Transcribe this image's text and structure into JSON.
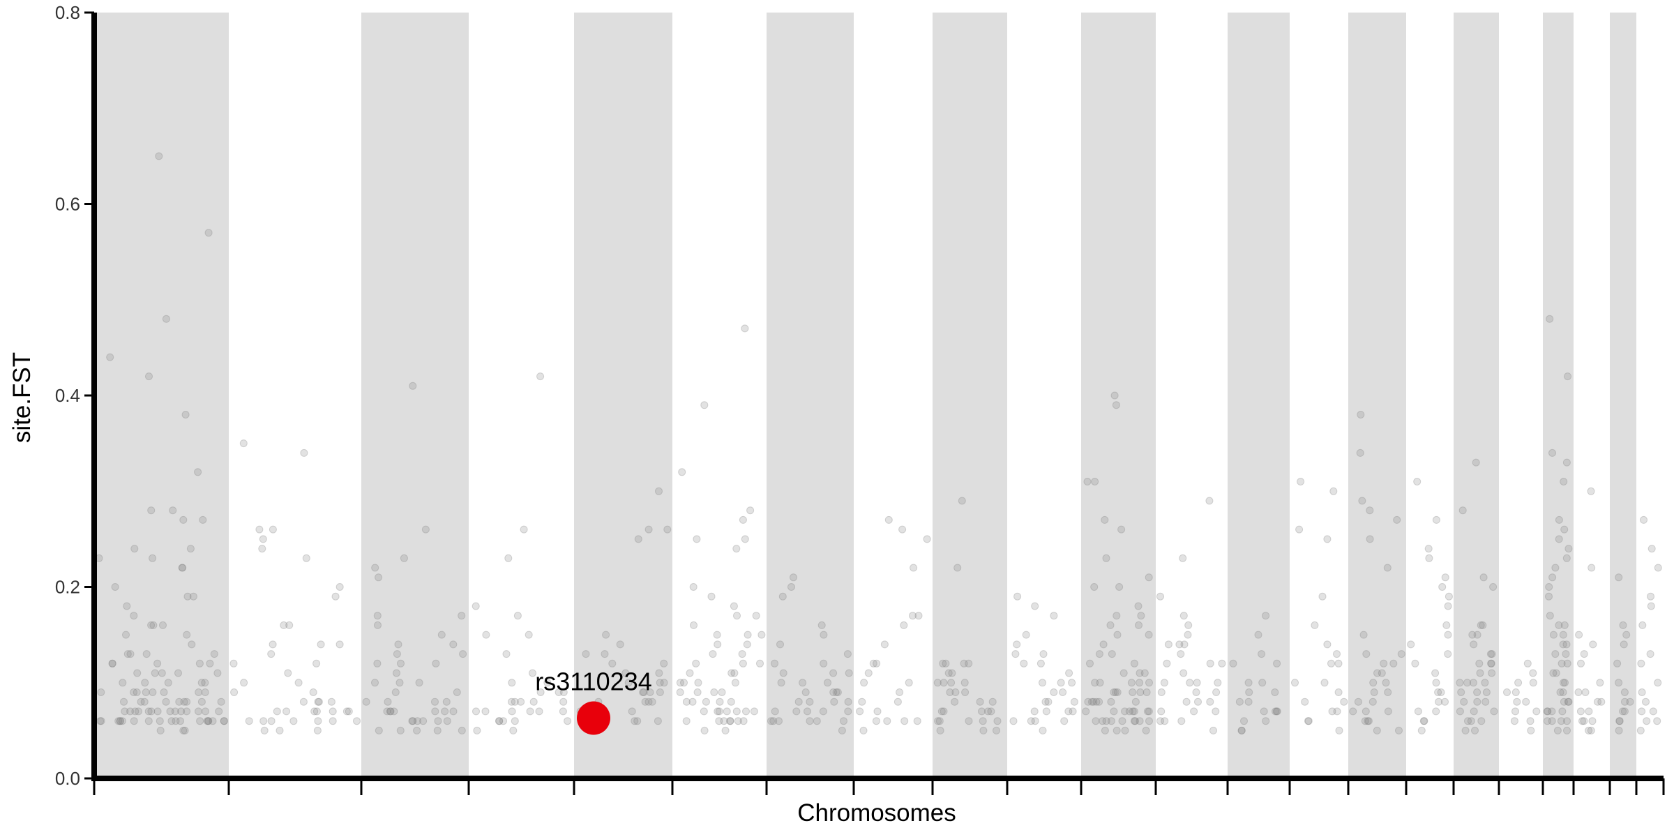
{
  "chart_data": {
    "type": "scatter",
    "title": "",
    "xlabel": "Chromosomes",
    "ylabel": "site.FST",
    "ylim": [
      0,
      0.8
    ],
    "y_ticks": [
      "0.0",
      "0.2",
      "0.4",
      "0.6",
      "0.8"
    ],
    "y_tick_values": [
      0,
      0.2,
      0.4,
      0.6,
      0.8
    ],
    "x_tick_labels": [],
    "grid": false,
    "legend": "none",
    "colors": {
      "points": "#7a7a7a",
      "band": "#dedede",
      "highlight": "#e8000b",
      "axis": "#000000"
    },
    "chromosome_bands": "alternating gray/white",
    "chromosome_count": 22,
    "highlight": {
      "label": "rs3110234",
      "chromosome": 4,
      "site_fst": 0.063
    },
    "chromosomes": [
      {
        "chr": 1,
        "shaded": true,
        "fst": [
          0.07,
          0.09,
          0.11,
          0.06,
          0.08,
          0.27,
          0.06,
          0.12,
          0.19,
          0.27,
          0.14,
          0.08,
          0.09,
          0.1,
          0.06,
          0.13,
          0.07,
          0.32,
          0.06,
          0.1,
          0.12,
          0.07,
          0.24,
          0.08,
          0.09,
          0.1,
          0.13,
          0.06,
          0.07,
          0.23,
          0.08,
          0.06,
          0.06,
          0.07,
          0.09,
          0.11,
          0.08,
          0.12,
          0.19,
          0.18,
          0.16,
          0.57,
          0.1,
          0.11,
          0.08,
          0.09,
          0.15,
          0.12,
          0.28,
          0.44,
          0.38,
          0.06,
          0.07,
          0.13,
          0.13,
          0.42,
          0.28,
          0.11,
          0.09,
          0.06,
          0.07,
          0.2,
          0.22,
          0.23,
          0.24,
          0.17,
          0.16,
          0.15,
          0.12,
          0.65,
          0.48,
          0.07,
          0.06,
          0.08,
          0.09,
          0.1,
          0.11,
          0.16,
          0.22,
          0.07,
          0.06,
          0.07,
          0.08,
          0.09,
          0.06,
          0.07,
          0.06,
          0.08,
          0.06,
          0.07,
          0.06,
          0.05,
          0.06,
          0.07,
          0.06,
          0.05,
          0.06,
          0.07,
          0.05,
          0.06
        ]
      },
      {
        "chr": 2,
        "shaded": false,
        "fst": [
          0.34,
          0.08,
          0.35,
          0.07,
          0.1,
          0.25,
          0.16,
          0.07,
          0.06,
          0.2,
          0.24,
          0.06,
          0.16,
          0.07,
          0.09,
          0.26,
          0.14,
          0.19,
          0.08,
          0.06,
          0.23,
          0.14,
          0.13,
          0.12,
          0.05,
          0.1,
          0.09,
          0.08,
          0.12,
          0.06,
          0.07,
          0.07,
          0.05,
          0.06,
          0.08,
          0.26,
          0.07,
          0.11,
          0.14,
          0.06,
          0.07,
          0.05,
          0.06
        ]
      },
      {
        "chr": 3,
        "shaded": true,
        "fst": [
          0.14,
          0.12,
          0.1,
          0.17,
          0.08,
          0.05,
          0.06,
          0.07,
          0.13,
          0.41,
          0.06,
          0.05,
          0.07,
          0.1,
          0.08,
          0.26,
          0.23,
          0.22,
          0.21,
          0.17,
          0.16,
          0.15,
          0.12,
          0.07,
          0.05,
          0.07,
          0.06,
          0.09,
          0.11,
          0.1,
          0.14,
          0.12,
          0.13,
          0.08,
          0.07,
          0.06,
          0.05,
          0.07,
          0.06,
          0.09,
          0.08,
          0.07,
          0.06,
          0.05
        ]
      },
      {
        "chr": 4,
        "shaded": false,
        "fst": [
          0.26,
          0.42,
          0.07,
          0.06,
          0.15,
          0.1,
          0.18,
          0.07,
          0.08,
          0.17,
          0.23,
          0.09,
          0.08,
          0.15,
          0.13,
          0.08,
          0.06,
          0.07,
          0.06,
          0.08,
          0.07,
          0.11,
          0.1,
          0.09,
          0.06,
          0.05,
          0.07,
          0.08,
          0.09,
          0.06,
          0.07,
          0.05
        ]
      },
      {
        "chr": 5,
        "shaded": true,
        "fst": [
          0.12,
          0.07,
          0.11,
          0.13,
          0.1,
          0.09,
          0.26,
          0.26,
          0.14,
          0.25,
          0.3,
          0.15,
          0.08,
          0.07,
          0.06,
          0.1,
          0.13,
          0.09,
          0.08,
          0.07,
          0.06,
          0.07,
          0.08,
          0.09,
          0.12,
          0.11,
          0.06,
          0.07,
          0.06,
          0.08,
          0.1,
          0.09,
          0.07
        ]
      },
      {
        "chr": 6,
        "shaded": false,
        "fst": [
          0.39,
          0.28,
          0.27,
          0.24,
          0.17,
          0.16,
          0.15,
          0.14,
          0.13,
          0.12,
          0.11,
          0.1,
          0.09,
          0.08,
          0.07,
          0.06,
          0.32,
          0.05,
          0.06,
          0.07,
          0.08,
          0.09,
          0.1,
          0.06,
          0.07,
          0.08,
          0.05,
          0.06,
          0.07,
          0.09,
          0.11,
          0.06,
          0.07,
          0.08,
          0.07,
          0.06,
          0.12,
          0.13,
          0.1,
          0.15,
          0.47,
          0.25,
          0.25,
          0.2,
          0.18,
          0.17,
          0.19,
          0.15,
          0.12,
          0.11,
          0.14,
          0.1,
          0.09,
          0.08,
          0.07,
          0.06
        ]
      },
      {
        "chr": 7,
        "shaded": true,
        "fst": [
          0.21,
          0.2,
          0.12,
          0.11,
          0.09,
          0.08,
          0.07,
          0.06,
          0.06,
          0.07,
          0.08,
          0.06,
          0.13,
          0.11,
          0.1,
          0.09,
          0.08,
          0.16,
          0.12,
          0.1,
          0.09,
          0.08,
          0.07,
          0.06,
          0.05,
          0.07,
          0.06,
          0.15,
          0.14,
          0.19,
          0.11,
          0.1,
          0.09,
          0.07,
          0.06
        ]
      },
      {
        "chr": 8,
        "shaded": false,
        "fst": [
          0.27,
          0.26,
          0.25,
          0.22,
          0.17,
          0.14,
          0.12,
          0.1,
          0.08,
          0.07,
          0.06,
          0.06,
          0.17,
          0.16,
          0.12,
          0.11,
          0.1,
          0.09,
          0.08,
          0.06,
          0.05,
          0.07,
          0.06
        ]
      },
      {
        "chr": 9,
        "shaded": true,
        "fst": [
          0.12,
          0.11,
          0.1,
          0.09,
          0.08,
          0.07,
          0.06,
          0.06,
          0.05,
          0.05,
          0.07,
          0.12,
          0.1,
          0.12,
          0.09,
          0.06,
          0.07,
          0.08,
          0.1,
          0.12,
          0.11,
          0.07,
          0.06,
          0.08,
          0.22,
          0.29,
          0.1,
          0.09,
          0.07,
          0.06,
          0.05
        ]
      },
      {
        "chr": 10,
        "shaded": false,
        "fst": [
          0.14,
          0.08,
          0.07,
          0.06,
          0.12,
          0.13,
          0.15,
          0.1,
          0.09,
          0.07,
          0.08,
          0.06,
          0.19,
          0.18,
          0.17,
          0.13,
          0.12,
          0.1,
          0.09,
          0.07,
          0.06,
          0.08,
          0.11,
          0.1,
          0.07,
          0.06,
          0.05
        ]
      },
      {
        "chr": 11,
        "shaded": true,
        "fst": [
          0.31,
          0.26,
          0.23,
          0.17,
          0.16,
          0.15,
          0.13,
          0.11,
          0.1,
          0.09,
          0.08,
          0.07,
          0.06,
          0.06,
          0.05,
          0.06,
          0.07,
          0.08,
          0.07,
          0.09,
          0.27,
          0.39,
          0.2,
          0.17,
          0.14,
          0.12,
          0.1,
          0.09,
          0.08,
          0.07,
          0.06,
          0.05,
          0.11,
          0.13,
          0.15,
          0.16,
          0.1,
          0.09,
          0.08,
          0.06,
          0.07,
          0.05,
          0.06,
          0.07,
          0.1,
          0.09,
          0.08,
          0.06,
          0.07,
          0.08,
          0.05,
          0.06,
          0.4,
          0.31,
          0.21,
          0.2,
          0.18,
          0.1,
          0.09,
          0.12,
          0.11,
          0.08,
          0.07,
          0.06
        ]
      },
      {
        "chr": 12,
        "shaded": false,
        "fst": [
          0.19,
          0.17,
          0.14,
          0.12,
          0.11,
          0.1,
          0.09,
          0.08,
          0.07,
          0.06,
          0.05,
          0.07,
          0.08,
          0.09,
          0.23,
          0.06,
          0.1,
          0.14,
          0.13,
          0.12,
          0.1,
          0.09,
          0.08,
          0.07,
          0.06,
          0.29,
          0.16,
          0.15,
          0.14,
          0.12,
          0.1
        ]
      },
      {
        "chr": 13,
        "shaded": true,
        "fst": [
          0.1,
          0.07,
          0.05,
          0.17,
          0.15,
          0.13,
          0.12,
          0.09,
          0.08,
          0.07,
          0.06,
          0.05,
          0.1,
          0.09,
          0.07,
          0.06,
          0.12,
          0.08,
          0.07
        ]
      },
      {
        "chr": 14,
        "shaded": false,
        "fst": [
          0.26,
          0.25,
          0.3,
          0.31,
          0.19,
          0.16,
          0.12,
          0.1,
          0.08,
          0.07,
          0.06,
          0.05,
          0.14,
          0.13,
          0.12,
          0.1,
          0.09,
          0.08,
          0.07,
          0.06
        ]
      },
      {
        "chr": 15,
        "shaded": true,
        "fst": [
          0.38,
          0.34,
          0.29,
          0.28,
          0.27,
          0.25,
          0.22,
          0.15,
          0.13,
          0.12,
          0.11,
          0.1,
          0.09,
          0.08,
          0.07,
          0.06,
          0.05,
          0.07,
          0.06,
          0.08,
          0.1,
          0.12,
          0.11,
          0.09,
          0.07,
          0.06,
          0.05,
          0.13
        ]
      },
      {
        "chr": 16,
        "shaded": false,
        "fst": [
          0.21,
          0.2,
          0.31,
          0.27,
          0.24,
          0.23,
          0.19,
          0.18,
          0.16,
          0.14,
          0.13,
          0.12,
          0.1,
          0.09,
          0.08,
          0.07,
          0.06,
          0.05,
          0.15,
          0.11,
          0.09,
          0.08,
          0.07,
          0.06
        ]
      },
      {
        "chr": 17,
        "shaded": true,
        "fst": [
          0.21,
          0.2,
          0.16,
          0.15,
          0.14,
          0.13,
          0.12,
          0.1,
          0.09,
          0.08,
          0.07,
          0.06,
          0.05,
          0.33,
          0.28,
          0.16,
          0.12,
          0.11,
          0.1,
          0.09,
          0.08,
          0.07,
          0.06,
          0.12,
          0.11,
          0.1,
          0.09,
          0.08,
          0.07,
          0.06,
          0.05,
          0.15,
          0.13,
          0.1
        ]
      },
      {
        "chr": 18,
        "shaded": false,
        "fst": [
          0.12,
          0.1,
          0.09,
          0.08,
          0.07,
          0.06,
          0.05,
          0.06,
          0.07,
          0.08,
          0.09,
          0.1,
          0.11
        ]
      },
      {
        "chr": 19,
        "shaded": true,
        "fst": [
          0.48,
          0.42,
          0.34,
          0.33,
          0.31,
          0.27,
          0.26,
          0.25,
          0.24,
          0.23,
          0.22,
          0.21,
          0.2,
          0.19,
          0.17,
          0.16,
          0.15,
          0.14,
          0.13,
          0.12,
          0.11,
          0.1,
          0.09,
          0.08,
          0.07,
          0.06,
          0.05,
          0.06,
          0.07,
          0.08,
          0.09,
          0.1,
          0.11,
          0.12,
          0.13,
          0.14,
          0.15,
          0.16,
          0.06,
          0.07,
          0.08,
          0.05,
          0.06,
          0.07
        ]
      },
      {
        "chr": 20,
        "shaded": false,
        "fst": [
          0.3,
          0.22,
          0.15,
          0.14,
          0.13,
          0.12,
          0.1,
          0.09,
          0.08,
          0.07,
          0.06,
          0.05,
          0.06,
          0.07,
          0.08,
          0.09,
          0.06,
          0.05
        ]
      },
      {
        "chr": 21,
        "shaded": true,
        "fst": [
          0.21,
          0.16,
          0.15,
          0.14,
          0.12,
          0.1,
          0.09,
          0.08,
          0.07,
          0.06,
          0.05,
          0.06,
          0.07,
          0.08
        ]
      },
      {
        "chr": 22,
        "shaded": false,
        "fst": [
          0.27,
          0.24,
          0.22,
          0.19,
          0.18,
          0.16,
          0.13,
          0.12,
          0.1,
          0.09,
          0.08,
          0.07,
          0.06,
          0.05,
          0.06,
          0.07
        ]
      }
    ]
  }
}
